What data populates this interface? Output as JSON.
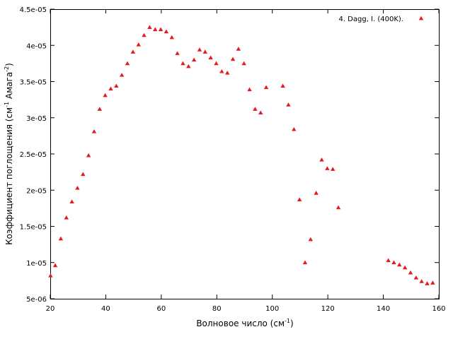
{
  "chart_data": {
    "type": "scatter",
    "xlabel": "Волновое число (см",
    "xlabel_sup": "-1",
    "xlabel_end": ")",
    "ylabel": "Коэффициент поглощения (см",
    "ylabel_sup1": "-1",
    "ylabel_mid": " Амага",
    "ylabel_sup2": "-2",
    "ylabel_end": ")",
    "xlim": [
      20,
      160
    ],
    "ylim": [
      5e-06,
      4.5e-05
    ],
    "x_ticks": [
      20,
      40,
      60,
      80,
      100,
      120,
      140,
      160
    ],
    "x_tick_labels": [
      "20",
      "40",
      "60",
      "80",
      "100",
      "120",
      "140",
      "160"
    ],
    "y_ticks": [
      5e-06,
      1e-05,
      1.5e-05,
      2e-05,
      2.5e-05,
      3e-05,
      3.5e-05,
      4e-05,
      4.5e-05
    ],
    "y_tick_labels": [
      "5e-06",
      "1e-05",
      "1.5e-05",
      "2e-05",
      "2.5e-05",
      "3e-05",
      "3.5e-05",
      "4e-05",
      "4.5e-05"
    ],
    "grid": false,
    "legend_position": "top-right",
    "series": [
      {
        "name": "4. Dagg, I. (400K).",
        "color": "#e41a1c",
        "marker": "triangle",
        "points": [
          [
            20.1,
            8.2e-06
          ],
          [
            21.8,
            9.6e-06
          ],
          [
            23.8,
            1.33e-05
          ],
          [
            25.8,
            1.62e-05
          ],
          [
            27.8,
            1.84e-05
          ],
          [
            29.8,
            2.03e-05
          ],
          [
            31.8,
            2.22e-05
          ],
          [
            33.8,
            2.48e-05
          ],
          [
            35.8,
            2.81e-05
          ],
          [
            37.8,
            3.12e-05
          ],
          [
            39.8,
            3.31e-05
          ],
          [
            41.8,
            3.4e-05
          ],
          [
            43.8,
            3.44e-05
          ],
          [
            45.8,
            3.59e-05
          ],
          [
            47.8,
            3.75e-05
          ],
          [
            49.8,
            3.91e-05
          ],
          [
            51.8,
            4.01e-05
          ],
          [
            53.8,
            4.14e-05
          ],
          [
            55.8,
            4.25e-05
          ],
          [
            57.8,
            4.22e-05
          ],
          [
            59.8,
            4.22e-05
          ],
          [
            61.8,
            4.19e-05
          ],
          [
            63.8,
            4.11e-05
          ],
          [
            65.8,
            3.89e-05
          ],
          [
            67.8,
            3.75e-05
          ],
          [
            69.8,
            3.71e-05
          ],
          [
            71.8,
            3.8e-05
          ],
          [
            73.8,
            3.94e-05
          ],
          [
            75.8,
            3.91e-05
          ],
          [
            77.8,
            3.83e-05
          ],
          [
            79.8,
            3.75e-05
          ],
          [
            81.8,
            3.64e-05
          ],
          [
            83.8,
            3.62e-05
          ],
          [
            85.8,
            3.81e-05
          ],
          [
            87.8,
            3.95e-05
          ],
          [
            89.8,
            3.75e-05
          ],
          [
            91.8,
            3.39e-05
          ],
          [
            93.8,
            3.12e-05
          ],
          [
            95.8,
            3.07e-05
          ],
          [
            97.8,
            3.42e-05
          ],
          [
            103.8,
            3.44e-05
          ],
          [
            105.8,
            3.18e-05
          ],
          [
            107.8,
            2.84e-05
          ],
          [
            109.8,
            1.87e-05
          ],
          [
            111.8,
            1e-05
          ],
          [
            113.8,
            1.32e-05
          ],
          [
            115.8,
            1.96e-05
          ],
          [
            117.8,
            2.42e-05
          ],
          [
            119.8,
            2.3e-05
          ],
          [
            121.8,
            2.29e-05
          ],
          [
            123.8,
            1.76e-05
          ],
          [
            141.8,
            1.03e-05
          ],
          [
            143.8,
            1e-05
          ],
          [
            145.8,
            9.7e-06
          ],
          [
            147.8,
            9.3e-06
          ],
          [
            149.8,
            8.6e-06
          ],
          [
            151.8,
            7.9e-06
          ],
          [
            153.8,
            7.4e-06
          ],
          [
            155.8,
            7.1e-06
          ],
          [
            157.8,
            7.2e-06
          ]
        ]
      }
    ]
  }
}
